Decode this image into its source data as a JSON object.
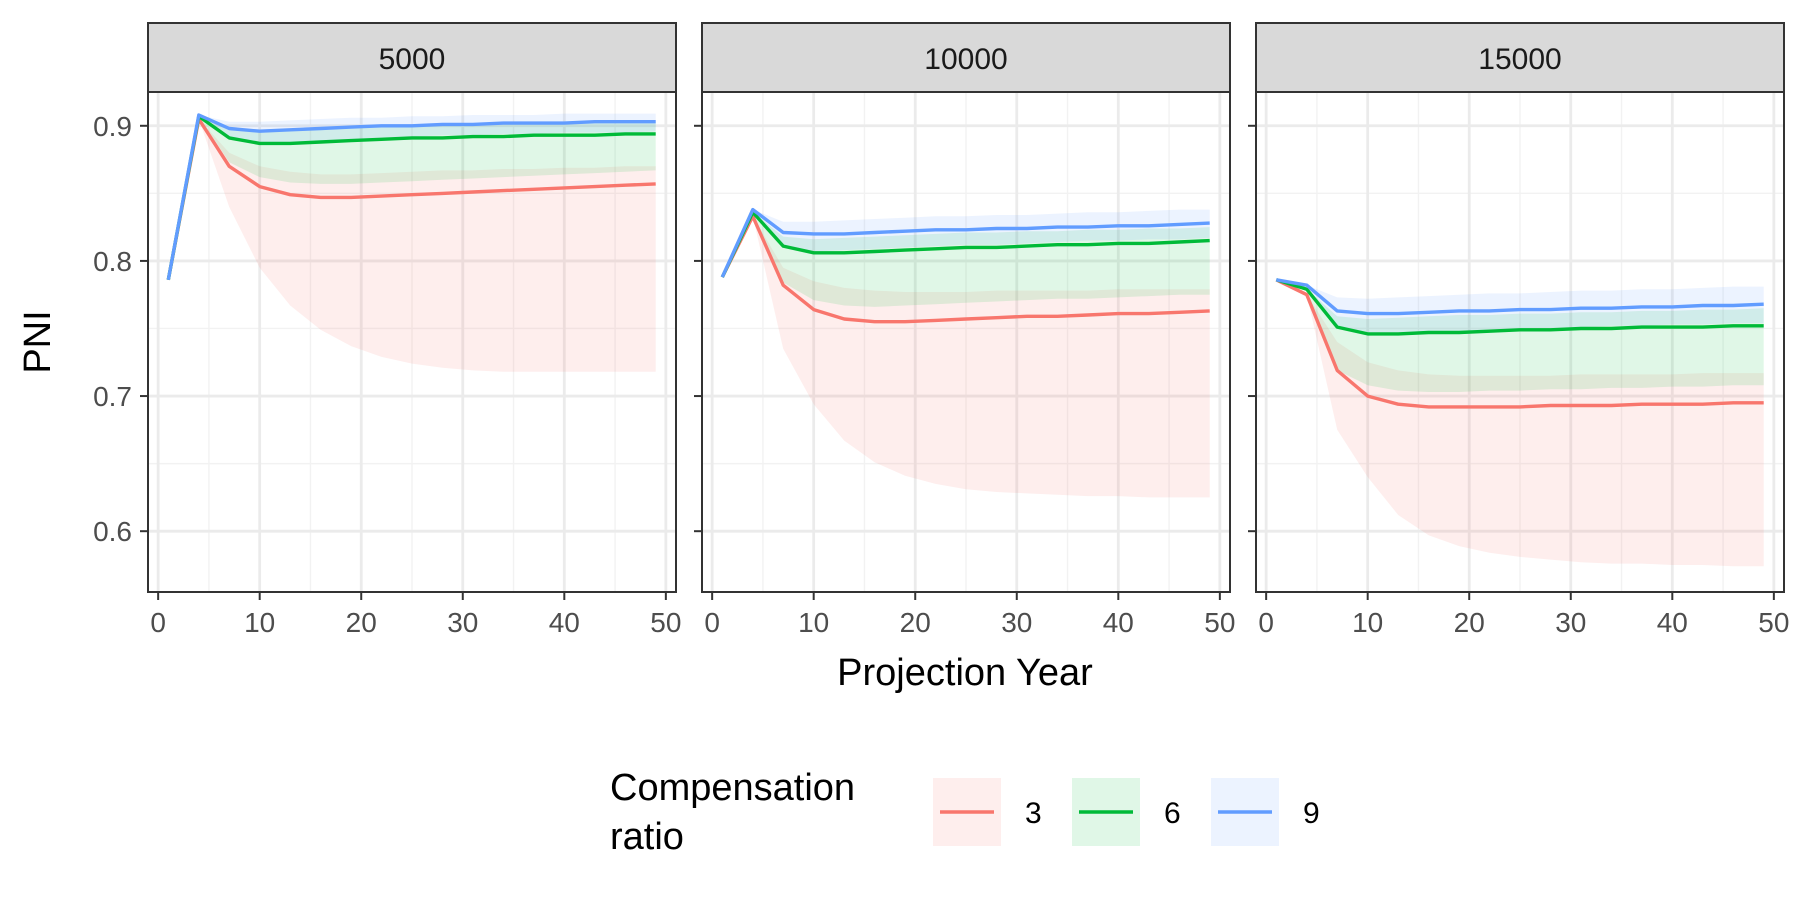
{
  "chart_data": {
    "type": "line",
    "xlabel": "Projection Year",
    "ylabel": "PNI",
    "xlim": [
      -1,
      51
    ],
    "ylim": [
      0.555,
      0.925
    ],
    "x_ticks": [
      0,
      10,
      20,
      30,
      40,
      50
    ],
    "y_ticks": [
      0.6,
      0.7,
      0.8,
      0.9
    ],
    "y_tick_labels": [
      "0.6",
      "0.7",
      "0.8",
      "0.9"
    ],
    "grid": true,
    "legend": {
      "title_lines": [
        "Compensation",
        "ratio"
      ],
      "placement": "bottom"
    },
    "x": [
      1,
      4,
      7,
      10,
      13,
      16,
      19,
      22,
      25,
      28,
      31,
      34,
      37,
      40,
      43,
      46,
      49
    ],
    "panels": [
      {
        "label": "5000",
        "series": [
          {
            "name": "3",
            "color": "#F8766D",
            "values": [
              0.786,
              0.905,
              0.87,
              0.855,
              0.849,
              0.847,
              0.847,
              0.848,
              0.849,
              0.85,
              0.851,
              0.852,
              0.853,
              0.854,
              0.855,
              0.856,
              0.857
            ],
            "lower": [
              0.786,
              0.905,
              0.84,
              0.795,
              0.767,
              0.749,
              0.737,
              0.729,
              0.724,
              0.721,
              0.719,
              0.718,
              0.718,
              0.718,
              0.718,
              0.718,
              0.718
            ],
            "upper": [
              0.786,
              0.905,
              0.88,
              0.87,
              0.866,
              0.864,
              0.864,
              0.865,
              0.866,
              0.867,
              0.867,
              0.868,
              0.868,
              0.869,
              0.869,
              0.87,
              0.87
            ]
          },
          {
            "name": "6",
            "color": "#00BA38",
            "values": [
              0.786,
              0.907,
              0.891,
              0.887,
              0.887,
              0.888,
              0.889,
              0.89,
              0.891,
              0.891,
              0.892,
              0.892,
              0.893,
              0.893,
              0.893,
              0.894,
              0.894
            ],
            "lower": [
              0.786,
              0.907,
              0.873,
              0.862,
              0.858,
              0.857,
              0.857,
              0.858,
              0.859,
              0.86,
              0.861,
              0.862,
              0.863,
              0.864,
              0.865,
              0.866,
              0.867
            ],
            "upper": [
              0.786,
              0.907,
              0.898,
              0.896,
              0.897,
              0.898,
              0.899,
              0.899,
              0.9,
              0.9,
              0.901,
              0.901,
              0.902,
              0.902,
              0.902,
              0.902,
              0.903
            ]
          },
          {
            "name": "9",
            "color": "#619CFF",
            "values": [
              0.786,
              0.908,
              0.898,
              0.896,
              0.897,
              0.898,
              0.899,
              0.9,
              0.9,
              0.901,
              0.901,
              0.902,
              0.902,
              0.902,
              0.903,
              0.903,
              0.903
            ],
            "lower": [
              0.786,
              0.908,
              0.891,
              0.888,
              0.888,
              0.889,
              0.89,
              0.891,
              0.892,
              0.893,
              0.893,
              0.894,
              0.894,
              0.895,
              0.895,
              0.895,
              0.896
            ],
            "upper": [
              0.786,
              0.908,
              0.903,
              0.903,
              0.904,
              0.905,
              0.906,
              0.906,
              0.907,
              0.907,
              0.908,
              0.908,
              0.908,
              0.909,
              0.909,
              0.909,
              0.909
            ]
          }
        ]
      },
      {
        "label": "10000",
        "series": [
          {
            "name": "3",
            "color": "#F8766D",
            "values": [
              0.788,
              0.833,
              0.782,
              0.764,
              0.757,
              0.755,
              0.755,
              0.756,
              0.757,
              0.758,
              0.759,
              0.759,
              0.76,
              0.761,
              0.761,
              0.762,
              0.763
            ],
            "lower": [
              0.788,
              0.833,
              0.735,
              0.694,
              0.667,
              0.651,
              0.641,
              0.635,
              0.631,
              0.629,
              0.628,
              0.627,
              0.626,
              0.626,
              0.625,
              0.625,
              0.625
            ],
            "upper": [
              0.788,
              0.833,
              0.795,
              0.785,
              0.78,
              0.778,
              0.777,
              0.777,
              0.777,
              0.778,
              0.778,
              0.778,
              0.778,
              0.779,
              0.779,
              0.779,
              0.779
            ]
          },
          {
            "name": "6",
            "color": "#00BA38",
            "values": [
              0.788,
              0.836,
              0.811,
              0.806,
              0.806,
              0.807,
              0.808,
              0.809,
              0.81,
              0.81,
              0.811,
              0.812,
              0.812,
              0.813,
              0.813,
              0.814,
              0.815
            ],
            "lower": [
              0.788,
              0.836,
              0.784,
              0.771,
              0.767,
              0.766,
              0.767,
              0.768,
              0.769,
              0.77,
              0.771,
              0.772,
              0.772,
              0.773,
              0.774,
              0.775,
              0.775
            ],
            "upper": [
              0.788,
              0.836,
              0.818,
              0.816,
              0.817,
              0.818,
              0.819,
              0.82,
              0.821,
              0.821,
              0.822,
              0.822,
              0.823,
              0.823,
              0.824,
              0.824,
              0.825
            ]
          },
          {
            "name": "9",
            "color": "#619CFF",
            "values": [
              0.788,
              0.838,
              0.821,
              0.82,
              0.82,
              0.821,
              0.822,
              0.823,
              0.823,
              0.824,
              0.824,
              0.825,
              0.825,
              0.826,
              0.826,
              0.827,
              0.828
            ],
            "lower": [
              0.788,
              0.838,
              0.811,
              0.807,
              0.808,
              0.809,
              0.81,
              0.811,
              0.812,
              0.812,
              0.813,
              0.814,
              0.815,
              0.815,
              0.816,
              0.816,
              0.817
            ],
            "upper": [
              0.788,
              0.838,
              0.829,
              0.829,
              0.83,
              0.831,
              0.832,
              0.833,
              0.833,
              0.834,
              0.834,
              0.835,
              0.836,
              0.836,
              0.837,
              0.838,
              0.838
            ]
          }
        ]
      },
      {
        "label": "15000",
        "series": [
          {
            "name": "3",
            "color": "#F8766D",
            "values": [
              0.786,
              0.775,
              0.719,
              0.7,
              0.694,
              0.692,
              0.692,
              0.692,
              0.692,
              0.693,
              0.693,
              0.693,
              0.694,
              0.694,
              0.694,
              0.695,
              0.695
            ],
            "lower": [
              0.786,
              0.775,
              0.675,
              0.64,
              0.612,
              0.597,
              0.589,
              0.584,
              0.581,
              0.579,
              0.577,
              0.576,
              0.576,
              0.575,
              0.575,
              0.574,
              0.574
            ],
            "upper": [
              0.786,
              0.775,
              0.74,
              0.725,
              0.719,
              0.716,
              0.715,
              0.715,
              0.715,
              0.715,
              0.716,
              0.716,
              0.716,
              0.716,
              0.717,
              0.717,
              0.717
            ]
          },
          {
            "name": "6",
            "color": "#00BA38",
            "values": [
              0.786,
              0.779,
              0.751,
              0.746,
              0.746,
              0.747,
              0.747,
              0.748,
              0.749,
              0.749,
              0.75,
              0.75,
              0.751,
              0.751,
              0.751,
              0.752,
              0.752
            ],
            "lower": [
              0.786,
              0.779,
              0.719,
              0.708,
              0.704,
              0.703,
              0.703,
              0.704,
              0.704,
              0.705,
              0.705,
              0.706,
              0.706,
              0.707,
              0.707,
              0.708,
              0.708
            ],
            "upper": [
              0.786,
              0.779,
              0.759,
              0.757,
              0.758,
              0.759,
              0.76,
              0.76,
              0.761,
              0.761,
              0.762,
              0.762,
              0.763,
              0.763,
              0.764,
              0.764,
              0.765
            ]
          },
          {
            "name": "9",
            "color": "#619CFF",
            "values": [
              0.786,
              0.782,
              0.763,
              0.761,
              0.761,
              0.762,
              0.763,
              0.763,
              0.764,
              0.764,
              0.765,
              0.765,
              0.766,
              0.766,
              0.767,
              0.767,
              0.768
            ],
            "lower": [
              0.786,
              0.782,
              0.75,
              0.746,
              0.746,
              0.747,
              0.748,
              0.749,
              0.749,
              0.75,
              0.751,
              0.752,
              0.752,
              0.753,
              0.753,
              0.754,
              0.754
            ],
            "upper": [
              0.786,
              0.782,
              0.773,
              0.772,
              0.773,
              0.774,
              0.775,
              0.776,
              0.776,
              0.777,
              0.778,
              0.778,
              0.779,
              0.779,
              0.78,
              0.781,
              0.781
            ]
          }
        ]
      }
    ]
  }
}
